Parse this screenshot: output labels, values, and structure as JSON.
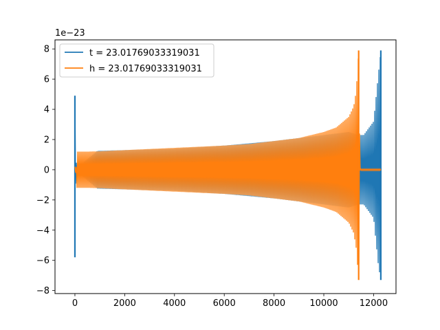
{
  "chart_data": {
    "type": "line",
    "title": "",
    "xlabel": "",
    "ylabel": "",
    "offset_label": "1e−23",
    "xlim": [
      -800,
      12900
    ],
    "ylim": [
      -8.2,
      8.6
    ],
    "x_ticks": [
      0,
      2000,
      4000,
      6000,
      8000,
      10000,
      12000
    ],
    "x_tick_labels": [
      "0",
      "2000",
      "4000",
      "6000",
      "8000",
      "10000",
      "12000"
    ],
    "y_ticks": [
      -8,
      -6,
      -4,
      -2,
      0,
      2,
      4,
      6,
      8
    ],
    "y_tick_labels": [
      "−8",
      "−6",
      "−4",
      "−2",
      "0",
      "2",
      "4",
      "6",
      "8"
    ],
    "grid": false,
    "legend_position": "top-left",
    "series": [
      {
        "name": "t = 23.01769033319031",
        "color": "#1f77b4",
        "envelope": {
          "x": [
            0,
            30,
            200,
            900,
            2000,
            4000,
            6000,
            8000,
            10000,
            11000,
            11400,
            11600,
            12000,
            12200,
            12300
          ],
          "upper": [
            4.9,
            0.5,
            0.3,
            1.25,
            1.3,
            1.4,
            1.6,
            1.9,
            2.3,
            2.5,
            2.3,
            2.3,
            3.2,
            6.5,
            8.0
          ],
          "lower": [
            -5.8,
            -0.5,
            -0.3,
            -1.25,
            -1.3,
            -1.4,
            -1.6,
            -1.9,
            -2.3,
            -2.5,
            -2.3,
            -2.3,
            -3.2,
            -6.5,
            -7.3
          ]
        },
        "spikes": [
          {
            "x": 0,
            "max": 4.9,
            "min": -5.8
          },
          {
            "x": 12290,
            "max": 7.9,
            "min": -7.3
          }
        ]
      },
      {
        "name": "h = 23.01769033319031",
        "color": "#ff7f0e",
        "envelope": {
          "x": [
            0,
            60,
            80,
            500,
            1000,
            2000,
            4000,
            6000,
            7000,
            8000,
            9000,
            10000,
            10500,
            11000,
            11200,
            11300,
            11400,
            11450,
            12300
          ],
          "upper": [
            0.2,
            0.2,
            1.2,
            1.2,
            1.22,
            1.3,
            1.45,
            1.6,
            1.7,
            1.9,
            2.1,
            2.5,
            2.8,
            3.5,
            4.2,
            5.2,
            7.9,
            0.05,
            0.05
          ],
          "lower": [
            -0.2,
            -0.2,
            -1.2,
            -1.2,
            -1.22,
            -1.3,
            -1.45,
            -1.6,
            -1.7,
            -1.9,
            -2.1,
            -2.5,
            -2.8,
            -3.5,
            -4.2,
            -5.2,
            -7.3,
            -0.05,
            -0.05
          ]
        },
        "spikes": [
          {
            "x": 11400,
            "max": 7.9,
            "min": -7.3
          }
        ]
      }
    ]
  }
}
